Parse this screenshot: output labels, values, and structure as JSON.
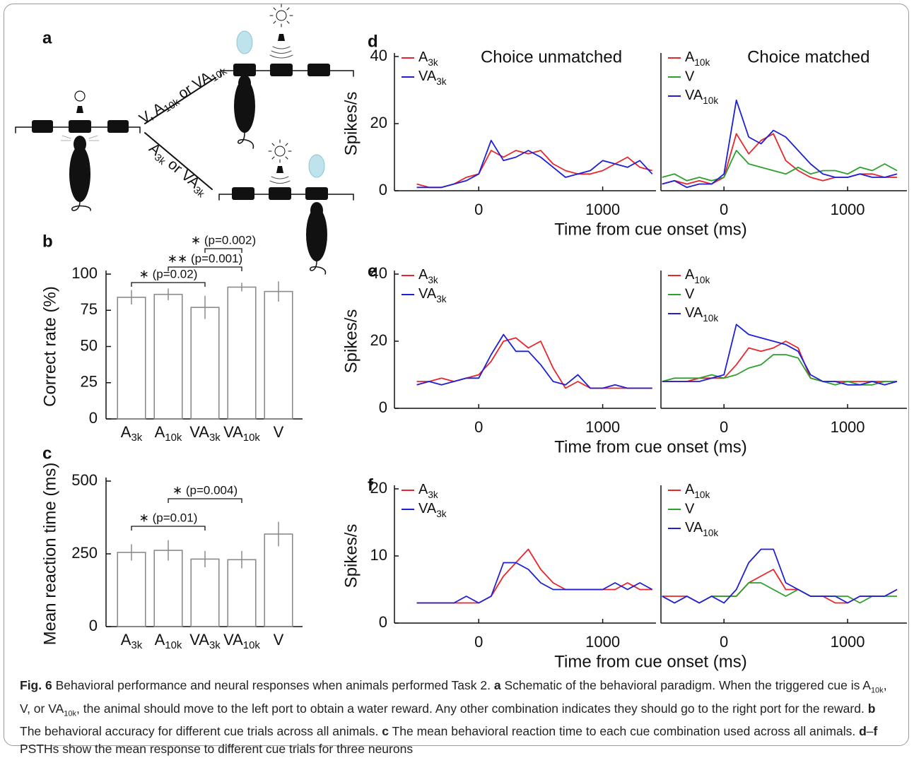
{
  "schematic": {
    "panel": "a",
    "upper_branch": [
      {
        "text": "V, A"
      },
      {
        "sub": "10k"
      },
      {
        "text": " or VA"
      },
      {
        "sub": "10k"
      }
    ],
    "lower_branch": [
      {
        "text": "A"
      },
      {
        "sub": "3k"
      },
      {
        "text": " or VA"
      },
      {
        "sub": "3k"
      }
    ]
  },
  "chart_data": [
    {
      "type": "bar",
      "panel": "b",
      "ylabel": "Correct rate (%)",
      "categories": [
        "A3k",
        "A10k",
        "VA3k",
        "VA10k",
        "V"
      ],
      "values": [
        84,
        86,
        77,
        91,
        88
      ],
      "errors": [
        5,
        4,
        8,
        3,
        7
      ],
      "color": "#8a8a8a",
      "ylim": [
        0,
        100
      ],
      "yticks": [
        0,
        25,
        50,
        75,
        100
      ],
      "annotations": [
        "∗ (p=0.02)",
        "∗∗ (p=0.001)",
        "∗ (p=0.002)"
      ]
    },
    {
      "type": "bar",
      "panel": "c",
      "ylabel": "Mean reaction time (ms)",
      "categories": [
        "A3k",
        "A10k",
        "VA3k",
        "VA10k",
        "V"
      ],
      "values": [
        255,
        262,
        232,
        230,
        318
      ],
      "errors": [
        28,
        35,
        28,
        30,
        42
      ],
      "color": "#8a8a8a",
      "ylim": [
        0,
        500
      ],
      "yticks": [
        0,
        250,
        500
      ],
      "annotations": [
        "∗ (p=0.01)",
        "∗ (p=0.004)"
      ]
    },
    {
      "type": "line",
      "panel": "d",
      "title": "Choice unmatched",
      "ylabel": "Spikes/s",
      "xlabel": "Time from cue onset (ms)",
      "x": [
        -500,
        -400,
        -300,
        -200,
        -100,
        0,
        100,
        200,
        300,
        400,
        500,
        600,
        700,
        800,
        900,
        1000,
        1100,
        1200,
        1300,
        1400
      ],
      "xlim": [
        -680,
        1430
      ],
      "xticks": [
        0,
        1000
      ],
      "ylim": [
        0,
        40
      ],
      "yticks": [
        0,
        20,
        40
      ],
      "series": [
        {
          "name": "A3k",
          "color": "#e8262b",
          "values": [
            2,
            1,
            1,
            2,
            4,
            5,
            12,
            10,
            12,
            11,
            12,
            8,
            6,
            5,
            5,
            6,
            8,
            10,
            7,
            6
          ]
        },
        {
          "name": "VA3k",
          "color": "#1f1fd6",
          "values": [
            1,
            1,
            1,
            2,
            3,
            5,
            15,
            9,
            10,
            12,
            10,
            7,
            4,
            5,
            6,
            9,
            8,
            7,
            9,
            5
          ]
        }
      ]
    },
    {
      "type": "line",
      "title": "Choice matched",
      "x": [
        -500,
        -400,
        -300,
        -200,
        -100,
        0,
        100,
        200,
        300,
        400,
        500,
        600,
        700,
        800,
        900,
        1000,
        1100,
        1200,
        1300,
        1400
      ],
      "xlim": [
        -510,
        1480
      ],
      "xticks": [
        0,
        1000
      ],
      "ylim": [
        0,
        40
      ],
      "series": [
        {
          "name": "A10k",
          "color": "#e8262b",
          "values": [
            2,
            3,
            2,
            3,
            2,
            4,
            17,
            11,
            15,
            17,
            9,
            6,
            4,
            3,
            4,
            4,
            5,
            5,
            4,
            4
          ]
        },
        {
          "name": "V",
          "color": "#2ca02c",
          "values": [
            4,
            5,
            3,
            4,
            3,
            4,
            12,
            8,
            7,
            6,
            5,
            7,
            5,
            6,
            6,
            5,
            7,
            6,
            8,
            6
          ]
        },
        {
          "name": "VA10k",
          "color": "#1f1fd6",
          "values": [
            2,
            3,
            1,
            2,
            2,
            5,
            27,
            16,
            14,
            18,
            16,
            12,
            8,
            5,
            4,
            4,
            5,
            4,
            4,
            5
          ]
        }
      ]
    },
    {
      "type": "line",
      "panel": "e",
      "ylabel": "Spikes/s",
      "xlabel": "Time from cue onset (ms)",
      "x": [
        -500,
        -400,
        -300,
        -200,
        -100,
        0,
        100,
        200,
        300,
        400,
        500,
        600,
        700,
        800,
        900,
        1000,
        1100,
        1200,
        1300,
        1400
      ],
      "xlim": [
        -680,
        1430
      ],
      "xticks": [
        0,
        1000
      ],
      "ylim": [
        0,
        40
      ],
      "yticks": [
        0,
        20,
        40
      ],
      "series": [
        {
          "name": "A3k",
          "color": "#e8262b",
          "values": [
            8,
            8,
            9,
            8,
            9,
            10,
            14,
            20,
            21,
            18,
            20,
            12,
            6,
            8,
            6,
            6,
            6,
            6,
            6,
            6
          ]
        },
        {
          "name": "VA3k",
          "color": "#1f1fd6",
          "values": [
            7,
            8,
            7,
            8,
            9,
            9,
            16,
            22,
            17,
            17,
            13,
            8,
            7,
            10,
            6,
            6,
            7,
            6,
            6,
            6
          ]
        }
      ]
    },
    {
      "type": "line",
      "x": [
        -500,
        -400,
        -300,
        -200,
        -100,
        0,
        100,
        200,
        300,
        400,
        500,
        600,
        700,
        800,
        900,
        1000,
        1100,
        1200,
        1300,
        1400
      ],
      "xlim": [
        -510,
        1480
      ],
      "xticks": [
        0,
        1000
      ],
      "ylim": [
        0,
        40
      ],
      "series": [
        {
          "name": "A10k",
          "color": "#e8262b",
          "values": [
            8,
            8,
            8,
            9,
            9,
            9,
            13,
            18,
            17,
            18,
            20,
            18,
            9,
            8,
            8,
            8,
            8,
            8,
            8,
            8
          ]
        },
        {
          "name": "V",
          "color": "#2ca02c",
          "values": [
            8,
            9,
            9,
            9,
            10,
            9,
            10,
            12,
            13,
            16,
            16,
            15,
            9,
            8,
            7,
            8,
            7,
            7,
            8,
            8
          ]
        },
        {
          "name": "VA10k",
          "color": "#1f1fd6",
          "values": [
            8,
            8,
            8,
            8,
            9,
            10,
            25,
            22,
            21,
            20,
            19,
            17,
            10,
            8,
            8,
            7,
            7,
            8,
            7,
            8
          ]
        }
      ]
    },
    {
      "type": "line",
      "panel": "f",
      "ylabel": "Spikes/s",
      "xlabel": "Time from cue onset (ms)",
      "x": [
        -500,
        -400,
        -300,
        -200,
        -100,
        0,
        100,
        200,
        300,
        400,
        500,
        600,
        700,
        800,
        900,
        1000,
        1100,
        1200,
        1300,
        1400
      ],
      "xlim": [
        -680,
        1430
      ],
      "xticks": [
        0,
        1000
      ],
      "ylim": [
        0,
        20
      ],
      "yticks": [
        0,
        10,
        20
      ],
      "series": [
        {
          "name": "A3k",
          "color": "#e8262b",
          "values": [
            3,
            3,
            3,
            3,
            3,
            3,
            4,
            7,
            9,
            11,
            8,
            6,
            5,
            5,
            5,
            5,
            5,
            6,
            5,
            5
          ]
        },
        {
          "name": "VA3k",
          "color": "#1f1fd6",
          "values": [
            3,
            3,
            3,
            3,
            4,
            3,
            4,
            9,
            9,
            8,
            6,
            5,
            5,
            5,
            5,
            5,
            6,
            5,
            6,
            5
          ]
        }
      ]
    },
    {
      "type": "line",
      "x": [
        -500,
        -400,
        -300,
        -200,
        -100,
        0,
        100,
        200,
        300,
        400,
        500,
        600,
        700,
        800,
        900,
        1000,
        1100,
        1200,
        1300,
        1400
      ],
      "xlim": [
        -510,
        1480
      ],
      "xticks": [
        0,
        1000
      ],
      "ylim": [
        0,
        20
      ],
      "series": [
        {
          "name": "A10k",
          "color": "#e8262b",
          "values": [
            4,
            4,
            4,
            3,
            4,
            4,
            4,
            6,
            7,
            8,
            5,
            5,
            4,
            4,
            3,
            3,
            4,
            4,
            4,
            5
          ]
        },
        {
          "name": "V",
          "color": "#2ca02c",
          "values": [
            4,
            3,
            4,
            3,
            4,
            4,
            4,
            6,
            6,
            5,
            4,
            5,
            4,
            4,
            4,
            4,
            3,
            4,
            4,
            4
          ]
        },
        {
          "name": "VA10k",
          "color": "#1f1fd6",
          "values": [
            4,
            3,
            4,
            3,
            4,
            3,
            5,
            9,
            11,
            11,
            6,
            5,
            4,
            4,
            4,
            3,
            4,
            4,
            4,
            5
          ]
        }
      ]
    }
  ],
  "caption": {
    "segments": [
      {
        "text": "Fig. 6",
        "bold": true
      },
      {
        "text": "  Behavioral performance and neural responses when animals performed Task 2. "
      },
      {
        "text": "a",
        "bold": true
      },
      {
        "text": " Schematic of the behavioral paradigm. When the triggered cue is A"
      },
      {
        "sub": "10k"
      },
      {
        "text": ", V, or VA"
      },
      {
        "sub": "10k"
      },
      {
        "text": ", the animal should move to the left port to obtain a water reward. Any other combination indicates they should go to the right port for the reward. "
      },
      {
        "text": "b",
        "bold": true
      },
      {
        "text": " The behavioral accuracy for different cue trials across all animals. "
      },
      {
        "text": "c",
        "bold": true
      },
      {
        "text": " The mean behavioral reaction time to each cue combination used across all animals. "
      },
      {
        "text": "d",
        "bold": true
      },
      {
        "text": "–"
      },
      {
        "text": "f",
        "bold": true
      },
      {
        "text": " PSTHs show the mean response to different cue trials for three neurons"
      }
    ]
  }
}
